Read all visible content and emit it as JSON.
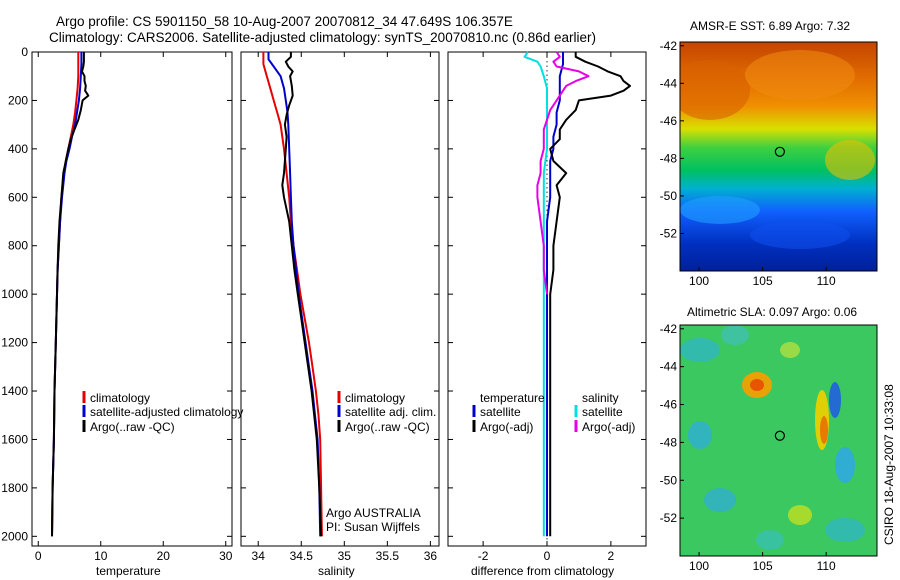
{
  "header": {
    "line1": "Argo profile: CS 5901150_58 10-Aug-2007 20070812_34 47.649S 106.357E",
    "line2": "Climatology: CARS2006. Satellite-adjusted climatology: synTS_20070810.nc (0.86d earlier)"
  },
  "side_label": "CSIRO 18-Aug-2007 10:33:08",
  "colors": {
    "red": "#e60000",
    "blue": "#0000cc",
    "black": "#000000",
    "cyan": "#00e0e0",
    "magenta": "#e600e6"
  },
  "chart_data": [
    {
      "type": "line",
      "name": "temperature-panel",
      "xlabel": "temperature",
      "xlim": [
        -1,
        31
      ],
      "ylim": [
        2040,
        0
      ],
      "xticks": [
        0,
        10,
        20,
        30
      ],
      "yticks": [
        0,
        200,
        400,
        600,
        800,
        1000,
        1200,
        1400,
        1600,
        1800,
        2000
      ],
      "legend": [
        "climatology",
        "satellite-adjusted climatology",
        "Argo(..raw -QC)"
      ],
      "legend_position": "lower-right",
      "series": [
        {
          "name": "climatology",
          "color": "#e60000",
          "depth": [
            0,
            50,
            100,
            150,
            200,
            250,
            300,
            350,
            400,
            450,
            500,
            600,
            700,
            800,
            900,
            1000,
            1200,
            1400,
            1600,
            1800,
            2000
          ],
          "values": [
            6.4,
            6.4,
            6.4,
            6.3,
            6.1,
            5.9,
            5.6,
            5.2,
            4.8,
            4.4,
            4.1,
            3.7,
            3.5,
            3.3,
            3.1,
            3.0,
            2.8,
            2.6,
            2.5,
            2.3,
            2.2
          ]
        },
        {
          "name": "satellite-adjusted climatology",
          "color": "#0000cc",
          "depth": [
            0,
            50,
            100,
            150,
            200,
            250,
            300,
            350,
            400,
            450,
            500,
            600,
            700,
            800,
            900,
            1000,
            1200,
            1400,
            1600,
            1800,
            2000
          ],
          "values": [
            6.9,
            6.9,
            6.8,
            6.7,
            6.5,
            6.2,
            5.9,
            5.4,
            5.0,
            4.5,
            4.2,
            3.8,
            3.5,
            3.3,
            3.1,
            3.0,
            2.8,
            2.6,
            2.5,
            2.3,
            2.2
          ]
        },
        {
          "name": "Argo(..raw -QC)",
          "color": "#000000",
          "depth": [
            0,
            20,
            40,
            60,
            80,
            100,
            120,
            140,
            160,
            180,
            200,
            240,
            280,
            320,
            360,
            400,
            450,
            500,
            600,
            700,
            800,
            900,
            1000,
            1200,
            1400,
            1600,
            1800,
            2000
          ],
          "values": [
            7.3,
            7.3,
            7.3,
            7.2,
            7.0,
            7.4,
            7.4,
            7.6,
            7.5,
            8.0,
            7.1,
            6.8,
            6.4,
            5.8,
            5.2,
            4.8,
            4.4,
            4.0,
            3.7,
            3.4,
            3.2,
            3.1,
            3.0,
            2.8,
            2.6,
            2.5,
            2.3,
            2.2
          ]
        }
      ]
    },
    {
      "type": "line",
      "name": "salinity-panel",
      "xlabel": "salinity",
      "xlim": [
        33.8,
        36.1
      ],
      "ylim": [
        2040,
        0
      ],
      "xticks": [
        34,
        34.5,
        35,
        35.5,
        36
      ],
      "legend": [
        "climatology",
        "satellite adj. clim.",
        "Argo(..raw -QC)"
      ],
      "legend_position": "lower-right",
      "annotations": [
        "Argo AUSTRALIA",
        "PI: Susan Wijffels"
      ],
      "series": [
        {
          "name": "climatology",
          "color": "#e60000",
          "depth": [
            0,
            50,
            100,
            150,
            200,
            250,
            300,
            350,
            400,
            500,
            600,
            700,
            800,
            900,
            1000,
            1100,
            1200,
            1300,
            1400,
            1500,
            1600,
            1800,
            2000
          ],
          "values": [
            34.06,
            34.06,
            34.1,
            34.14,
            34.18,
            34.22,
            34.26,
            34.28,
            34.3,
            34.33,
            34.36,
            34.38,
            34.41,
            34.45,
            34.49,
            34.54,
            34.59,
            34.63,
            34.67,
            34.7,
            34.72,
            34.73,
            34.74
          ]
        },
        {
          "name": "satellite adj. clim.",
          "color": "#0000cc",
          "depth": [
            0,
            30,
            60,
            100,
            150,
            200,
            250,
            300,
            400,
            500,
            600,
            700,
            800,
            900,
            1000,
            1100,
            1200,
            1300,
            1400,
            1500,
            1600,
            1800,
            2000
          ],
          "values": [
            34.12,
            34.12,
            34.18,
            34.26,
            34.3,
            34.32,
            34.34,
            34.35,
            34.36,
            34.37,
            34.38,
            34.39,
            34.41,
            34.44,
            34.47,
            34.51,
            34.55,
            34.59,
            34.63,
            34.66,
            34.69,
            34.71,
            34.72
          ]
        },
        {
          "name": "Argo(..raw -QC)",
          "color": "#000000",
          "depth": [
            0,
            20,
            40,
            60,
            80,
            100,
            140,
            180,
            220,
            260,
            300,
            350,
            400,
            450,
            500,
            550,
            600,
            650,
            700,
            800,
            900,
            1000,
            1100,
            1200,
            1400,
            1600,
            1800,
            2000
          ],
          "values": [
            34.38,
            34.38,
            34.32,
            34.35,
            34.4,
            34.37,
            34.39,
            34.4,
            34.36,
            34.33,
            34.31,
            34.33,
            34.32,
            34.31,
            34.3,
            34.28,
            34.3,
            34.33,
            34.36,
            34.39,
            34.42,
            34.46,
            34.5,
            34.54,
            34.62,
            34.68,
            34.71,
            34.73
          ]
        }
      ]
    },
    {
      "type": "line",
      "name": "difference-panel",
      "xlabel": "difference from climatology",
      "xlim": [
        -3.1,
        3.1
      ],
      "ylim": [
        2040,
        0
      ],
      "xticks": [
        -2,
        0,
        2
      ],
      "legend_groups": [
        {
          "title": "temperature",
          "entries": [
            "satellite",
            "Argo(-adj)"
          ]
        },
        {
          "title": "salinity",
          "entries": [
            "satellite",
            "Argo(-adj)"
          ]
        }
      ],
      "legend_position": "lower-center",
      "series": [
        {
          "name": "temperature satellite",
          "color": "#0000cc",
          "depth": [
            0,
            50,
            100,
            150,
            200,
            250,
            300,
            350,
            400,
            450,
            500,
            600,
            700,
            800,
            1000,
            1200,
            1400,
            1600,
            1800,
            2000
          ],
          "values": [
            0.5,
            0.5,
            0.4,
            0.4,
            0.4,
            0.3,
            0.3,
            0.2,
            0.2,
            0.1,
            0.1,
            0.1,
            0.0,
            0.0,
            0.0,
            0.0,
            0.0,
            0.0,
            0.0,
            0.0
          ]
        },
        {
          "name": "temperature Argo(-adj)",
          "color": "#000000",
          "depth": [
            0,
            20,
            40,
            60,
            80,
            100,
            120,
            140,
            160,
            180,
            200,
            240,
            280,
            320,
            360,
            400,
            450,
            500,
            550,
            600,
            700,
            800,
            900,
            1000,
            1200,
            1400,
            1600,
            1800,
            2000
          ],
          "values": [
            0.9,
            0.9,
            1.2,
            1.6,
            1.9,
            2.3,
            2.4,
            2.6,
            2.4,
            2.0,
            1.0,
            0.9,
            0.6,
            0.4,
            0.4,
            0.1,
            0.2,
            0.6,
            0.3,
            0.4,
            0.3,
            0.2,
            0.2,
            0.1,
            0.1,
            0.1,
            0.1,
            0.1,
            0.1
          ]
        },
        {
          "name": "salinity satellite",
          "color": "#00e0e0",
          "depth": [
            0,
            20,
            40,
            60,
            100,
            150,
            200,
            300,
            400,
            500,
            600,
            800,
            1000,
            1200,
            1400,
            1600,
            1800,
            2000
          ],
          "values": [
            -0.6,
            -0.7,
            -0.3,
            -0.2,
            -0.1,
            0.0,
            0.0,
            0.0,
            0.0,
            -0.1,
            -0.1,
            -0.1,
            -0.1,
            -0.1,
            -0.1,
            -0.1,
            -0.1,
            -0.1
          ]
        },
        {
          "name": "salinity Argo(-adj)",
          "color": "#e600e6",
          "depth": [
            0,
            20,
            40,
            60,
            80,
            100,
            120,
            140,
            160,
            180,
            200,
            240,
            280,
            320,
            360,
            400,
            450,
            500,
            550,
            600,
            700,
            800,
            900,
            1000
          ],
          "values": [
            0.3,
            0.4,
            0.2,
            0.3,
            1.0,
            1.3,
            0.9,
            0.6,
            0.5,
            0.4,
            0.3,
            0.1,
            0.0,
            -0.1,
            -0.1,
            -0.1,
            -0.2,
            -0.2,
            -0.3,
            -0.3,
            -0.2,
            -0.1,
            -0.1,
            0.0
          ]
        }
      ]
    },
    {
      "type": "heatmap",
      "name": "amsr-sst-map",
      "title": "AMSR-E SST: 6.89 Argo: 7.32",
      "xlim": [
        98.5,
        114
      ],
      "ylim": [
        -54,
        -41.8
      ],
      "xticks": [
        100,
        105,
        110
      ],
      "yticks": [
        -42,
        -44,
        -46,
        -48,
        -50,
        -52
      ],
      "colormap": "jet",
      "marker": {
        "lon": 106.357,
        "lat": -47.649
      }
    },
    {
      "type": "heatmap",
      "name": "altimetric-sla-map",
      "title": "Altimetric SLA: 0.097 Argo: 0.06",
      "xlim": [
        98.5,
        114
      ],
      "ylim": [
        -54,
        -41.8
      ],
      "xticks": [
        100,
        105,
        110
      ],
      "yticks": [
        -42,
        -44,
        -46,
        -48,
        -50,
        -52
      ],
      "colormap": "jet",
      "marker": {
        "lon": 106.357,
        "lat": -47.649
      }
    }
  ]
}
